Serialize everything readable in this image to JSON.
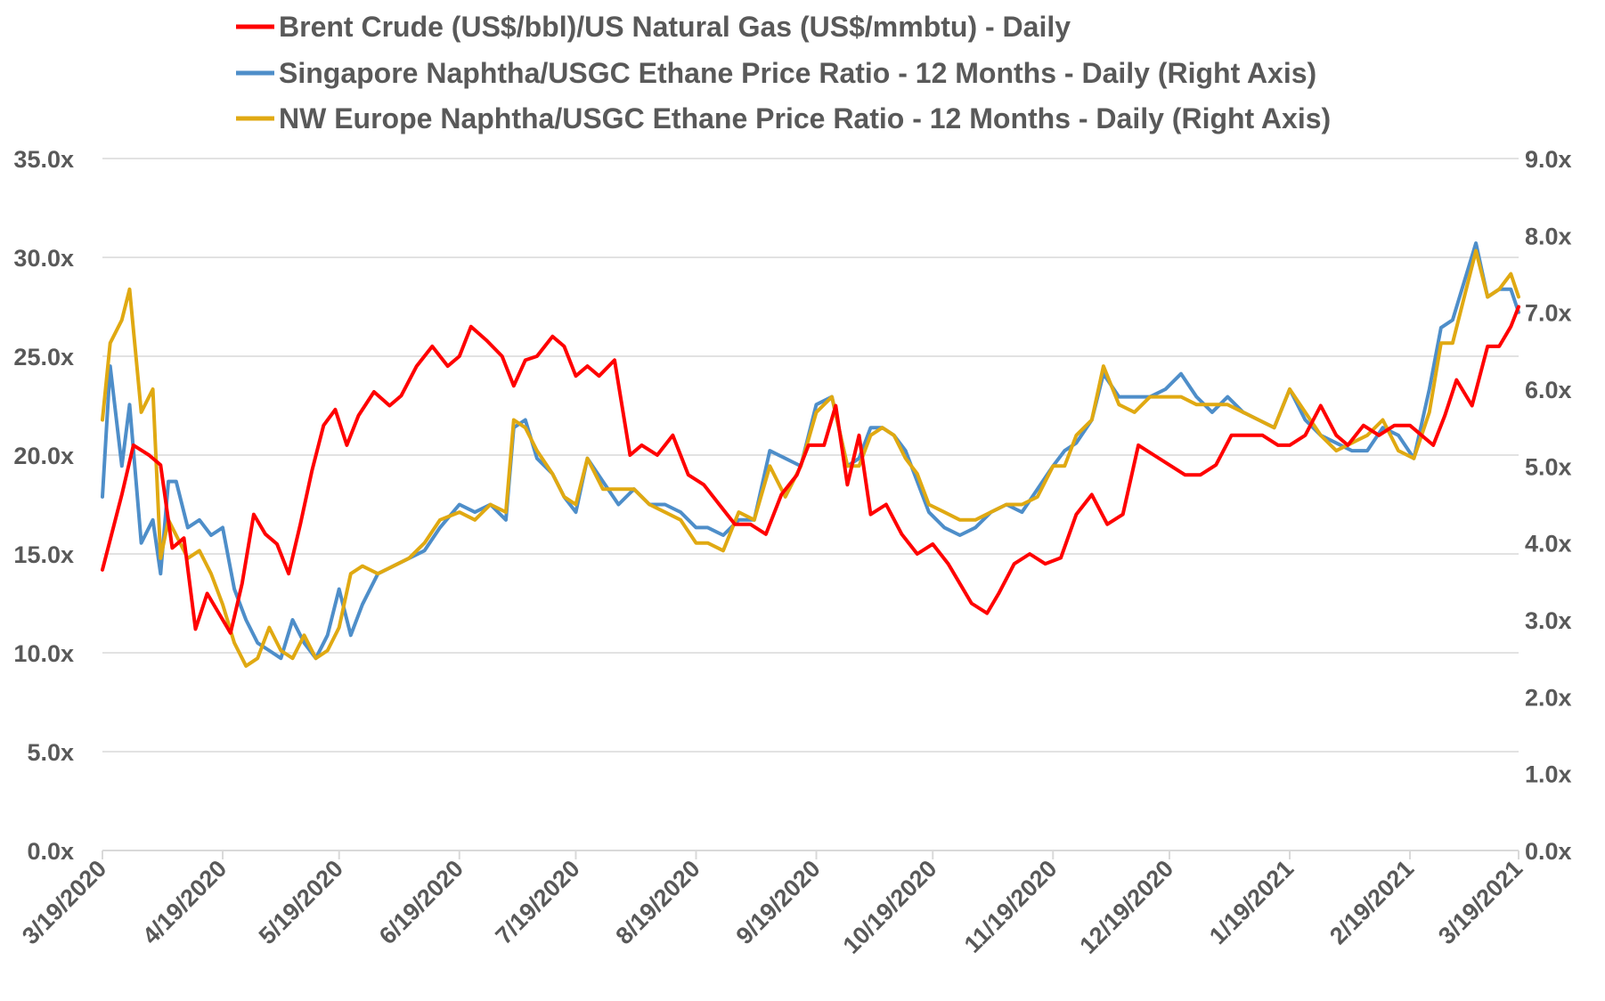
{
  "chart_data": {
    "type": "line",
    "legend": {
      "placement": "top"
    },
    "grid": true,
    "x_axis": {
      "type": "date",
      "range": [
        "2020-03-19",
        "2021-03-19"
      ],
      "tick_labels": [
        "3/19/2020",
        "4/19/2020",
        "5/19/2020",
        "6/19/2020",
        "7/19/2020",
        "8/19/2020",
        "9/19/2020",
        "10/19/2020",
        "11/19/2020",
        "12/19/2020",
        "1/19/2021",
        "2/19/2021",
        "3/19/2021"
      ],
      "tick_dates": [
        "2020-03-19",
        "2020-04-19",
        "2020-05-19",
        "2020-06-19",
        "2020-07-19",
        "2020-08-19",
        "2020-09-19",
        "2020-10-19",
        "2020-11-19",
        "2020-12-19",
        "2021-01-19",
        "2021-02-19",
        "2021-03-19"
      ]
    },
    "y_axis_left": {
      "range": [
        0,
        35
      ],
      "tick_values": [
        0,
        5,
        10,
        15,
        20,
        25,
        30,
        35
      ],
      "tick_labels": [
        "0.0x",
        "5.0x",
        "10.0x",
        "15.0x",
        "20.0x",
        "25.0x",
        "30.0x",
        "35.0x"
      ]
    },
    "y_axis_right": {
      "range": [
        0,
        9
      ],
      "tick_values": [
        0,
        1,
        2,
        3,
        4,
        5,
        6,
        7,
        8,
        9
      ],
      "tick_labels": [
        "0.0x",
        "1.0x",
        "2.0x",
        "3.0x",
        "4.0x",
        "5.0x",
        "6.0x",
        "7.0x",
        "8.0x",
        "9.0x"
      ]
    },
    "series": [
      {
        "name": "Brent Crude (US$/bbl)/US Natural Gas (US$/mmbtu) - Daily",
        "axis": "left",
        "color": "#ff0000",
        "x": [
          "2020-03-19",
          "2020-03-24",
          "2020-03-27",
          "2020-03-31",
          "2020-04-03",
          "2020-04-06",
          "2020-04-09",
          "2020-04-12",
          "2020-04-15",
          "2020-04-18",
          "2020-04-21",
          "2020-04-24",
          "2020-04-27",
          "2020-04-30",
          "2020-05-03",
          "2020-05-06",
          "2020-05-09",
          "2020-05-12",
          "2020-05-15",
          "2020-05-18",
          "2020-05-21",
          "2020-05-24",
          "2020-05-28",
          "2020-06-01",
          "2020-06-04",
          "2020-06-08",
          "2020-06-12",
          "2020-06-16",
          "2020-06-19",
          "2020-06-22",
          "2020-06-26",
          "2020-06-30",
          "2020-07-03",
          "2020-07-06",
          "2020-07-09",
          "2020-07-13",
          "2020-07-16",
          "2020-07-19",
          "2020-07-22",
          "2020-07-25",
          "2020-07-29",
          "2020-08-02",
          "2020-08-05",
          "2020-08-09",
          "2020-08-13",
          "2020-08-17",
          "2020-08-21",
          "2020-08-25",
          "2020-08-29",
          "2020-09-02",
          "2020-09-06",
          "2020-09-10",
          "2020-09-14",
          "2020-09-17",
          "2020-09-21",
          "2020-09-24",
          "2020-09-27",
          "2020-09-30",
          "2020-10-03",
          "2020-10-07",
          "2020-10-11",
          "2020-10-15",
          "2020-10-19",
          "2020-10-23",
          "2020-10-26",
          "2020-10-29",
          "2020-11-02",
          "2020-11-05",
          "2020-11-09",
          "2020-11-13",
          "2020-11-17",
          "2020-11-21",
          "2020-11-25",
          "2020-11-29",
          "2020-12-03",
          "2020-12-07",
          "2020-12-11",
          "2020-12-15",
          "2020-12-19",
          "2020-12-23",
          "2020-12-27",
          "2020-12-31",
          "2021-01-04",
          "2021-01-08",
          "2021-01-12",
          "2021-01-16",
          "2021-01-19",
          "2021-01-23",
          "2021-01-27",
          "2021-01-31",
          "2021-02-03",
          "2021-02-07",
          "2021-02-11",
          "2021-02-15",
          "2021-02-19",
          "2021-02-22",
          "2021-02-25",
          "2021-02-28",
          "2021-03-03",
          "2021-03-07",
          "2021-03-11",
          "2021-03-14",
          "2021-03-17",
          "2021-03-19"
        ],
        "values": [
          14.2,
          18.0,
          20.5,
          20.0,
          19.5,
          15.3,
          15.8,
          11.2,
          13.0,
          12.0,
          11.0,
          13.5,
          17.0,
          16.0,
          15.5,
          14.0,
          16.5,
          19.2,
          21.5,
          22.3,
          20.5,
          22.0,
          23.2,
          22.5,
          23.0,
          24.5,
          25.5,
          24.5,
          25.0,
          26.5,
          25.8,
          25.0,
          23.5,
          24.8,
          25.0,
          26.0,
          25.5,
          24.0,
          24.5,
          24.0,
          24.8,
          20.0,
          20.5,
          20.0,
          21.0,
          19.0,
          18.5,
          17.5,
          16.5,
          16.5,
          16.0,
          18.0,
          19.0,
          20.5,
          20.5,
          22.5,
          18.5,
          21.0,
          17.0,
          17.5,
          16.0,
          15.0,
          15.5,
          14.5,
          13.5,
          12.5,
          12.0,
          13.0,
          14.5,
          15.0,
          14.5,
          14.8,
          17.0,
          18.0,
          16.5,
          17.0,
          20.5,
          20.0,
          19.5,
          19.0,
          19.0,
          19.5,
          21.0,
          21.0,
          21.0,
          20.5,
          20.5,
          21.0,
          22.5,
          21.0,
          20.5,
          21.5,
          21.0,
          21.5,
          21.5,
          21.0,
          20.5,
          22.0,
          23.8,
          22.5,
          25.5,
          25.5,
          26.5,
          27.5
        ],
        "value_precision_note": "approximate"
      },
      {
        "name": "Singapore Naphtha/USGC Ethane Price Ratio - 12 Months - Daily (Right Axis)",
        "axis": "right",
        "color": "#4e8ec9",
        "x": [
          "2020-03-19",
          "2020-03-21",
          "2020-03-24",
          "2020-03-26",
          "2020-03-29",
          "2020-04-01",
          "2020-04-03",
          "2020-04-05",
          "2020-04-07",
          "2020-04-10",
          "2020-04-13",
          "2020-04-16",
          "2020-04-19",
          "2020-04-22",
          "2020-04-25",
          "2020-04-28",
          "2020-05-01",
          "2020-05-04",
          "2020-05-07",
          "2020-05-10",
          "2020-05-13",
          "2020-05-16",
          "2020-05-19",
          "2020-05-22",
          "2020-05-25",
          "2020-05-29",
          "2020-06-02",
          "2020-06-06",
          "2020-06-10",
          "2020-06-14",
          "2020-06-19",
          "2020-06-23",
          "2020-06-27",
          "2020-07-01",
          "2020-07-03",
          "2020-07-06",
          "2020-07-09",
          "2020-07-13",
          "2020-07-16",
          "2020-07-19",
          "2020-07-22",
          "2020-07-26",
          "2020-07-30",
          "2020-08-03",
          "2020-08-07",
          "2020-08-11",
          "2020-08-15",
          "2020-08-19",
          "2020-08-22",
          "2020-08-26",
          "2020-08-30",
          "2020-09-03",
          "2020-09-07",
          "2020-09-11",
          "2020-09-15",
          "2020-09-19",
          "2020-09-23",
          "2020-09-27",
          "2020-09-30",
          "2020-10-03",
          "2020-10-06",
          "2020-10-09",
          "2020-10-12",
          "2020-10-15",
          "2020-10-18",
          "2020-10-22",
          "2020-10-26",
          "2020-10-30",
          "2020-11-03",
          "2020-11-07",
          "2020-11-11",
          "2020-11-15",
          "2020-11-19",
          "2020-11-22",
          "2020-11-25",
          "2020-11-29",
          "2020-12-02",
          "2020-12-06",
          "2020-12-10",
          "2020-12-14",
          "2020-12-18",
          "2020-12-22",
          "2020-12-26",
          "2020-12-30",
          "2021-01-03",
          "2021-01-07",
          "2021-01-11",
          "2021-01-15",
          "2021-01-19",
          "2021-01-23",
          "2021-01-27",
          "2021-01-31",
          "2021-02-04",
          "2021-02-08",
          "2021-02-12",
          "2021-02-16",
          "2021-02-20",
          "2021-02-24",
          "2021-02-27",
          "2021-03-02",
          "2021-03-05",
          "2021-03-08",
          "2021-03-11",
          "2021-03-14",
          "2021-03-17",
          "2021-03-19"
        ],
        "values": [
          4.6,
          6.3,
          5.0,
          5.8,
          4.0,
          4.3,
          3.6,
          4.8,
          4.8,
          4.2,
          4.3,
          4.1,
          4.2,
          3.4,
          3.0,
          2.7,
          2.6,
          2.5,
          3.0,
          2.7,
          2.5,
          2.8,
          3.4,
          2.8,
          3.2,
          3.6,
          3.7,
          3.8,
          3.9,
          4.2,
          4.5,
          4.4,
          4.5,
          4.3,
          5.5,
          5.6,
          5.1,
          4.9,
          4.6,
          4.4,
          5.1,
          4.8,
          4.5,
          4.7,
          4.5,
          4.5,
          4.4,
          4.2,
          4.2,
          4.1,
          4.3,
          4.3,
          5.2,
          5.1,
          5.0,
          5.8,
          5.9,
          5.0,
          5.1,
          5.5,
          5.5,
          5.4,
          5.2,
          4.8,
          4.4,
          4.2,
          4.1,
          4.2,
          4.4,
          4.5,
          4.4,
          4.7,
          5.0,
          5.2,
          5.3,
          5.6,
          6.2,
          5.9,
          5.9,
          5.9,
          6.0,
          6.2,
          5.9,
          5.7,
          5.9,
          5.7,
          5.6,
          5.5,
          6.0,
          5.6,
          5.4,
          5.3,
          5.2,
          5.2,
          5.5,
          5.4,
          5.1,
          6.0,
          6.8,
          6.9,
          7.4,
          7.9,
          7.2,
          7.3,
          7.3,
          7.0
        ]
      },
      {
        "name": "NW Europe Naphtha/USGC Ethane Price Ratio - 12 Months - Daily (Right Axis)",
        "axis": "right",
        "color": "#e0a912",
        "x": [
          "2020-03-19",
          "2020-03-21",
          "2020-03-24",
          "2020-03-26",
          "2020-03-29",
          "2020-04-01",
          "2020-04-03",
          "2020-04-05",
          "2020-04-07",
          "2020-04-10",
          "2020-04-13",
          "2020-04-16",
          "2020-04-19",
          "2020-04-22",
          "2020-04-25",
          "2020-04-28",
          "2020-05-01",
          "2020-05-04",
          "2020-05-07",
          "2020-05-10",
          "2020-05-13",
          "2020-05-16",
          "2020-05-19",
          "2020-05-22",
          "2020-05-25",
          "2020-05-29",
          "2020-06-02",
          "2020-06-06",
          "2020-06-10",
          "2020-06-14",
          "2020-06-19",
          "2020-06-23",
          "2020-06-27",
          "2020-07-01",
          "2020-07-03",
          "2020-07-06",
          "2020-07-09",
          "2020-07-13",
          "2020-07-16",
          "2020-07-19",
          "2020-07-22",
          "2020-07-26",
          "2020-07-30",
          "2020-08-03",
          "2020-08-07",
          "2020-08-11",
          "2020-08-15",
          "2020-08-19",
          "2020-08-22",
          "2020-08-26",
          "2020-08-30",
          "2020-09-03",
          "2020-09-07",
          "2020-09-11",
          "2020-09-15",
          "2020-09-19",
          "2020-09-23",
          "2020-09-27",
          "2020-09-30",
          "2020-10-03",
          "2020-10-06",
          "2020-10-09",
          "2020-10-12",
          "2020-10-15",
          "2020-10-18",
          "2020-10-22",
          "2020-10-26",
          "2020-10-30",
          "2020-11-03",
          "2020-11-07",
          "2020-11-11",
          "2020-11-15",
          "2020-11-19",
          "2020-11-22",
          "2020-11-25",
          "2020-11-29",
          "2020-12-02",
          "2020-12-06",
          "2020-12-10",
          "2020-12-14",
          "2020-12-18",
          "2020-12-22",
          "2020-12-26",
          "2020-12-30",
          "2021-01-03",
          "2021-01-07",
          "2021-01-11",
          "2021-01-15",
          "2021-01-19",
          "2021-01-23",
          "2021-01-27",
          "2021-01-31",
          "2021-02-04",
          "2021-02-08",
          "2021-02-12",
          "2021-02-16",
          "2021-02-20",
          "2021-02-24",
          "2021-02-27",
          "2021-03-02",
          "2021-03-05",
          "2021-03-08",
          "2021-03-11",
          "2021-03-14",
          "2021-03-17",
          "2021-03-19"
        ],
        "values": [
          5.6,
          6.6,
          6.9,
          7.3,
          5.7,
          6.0,
          3.8,
          4.3,
          4.1,
          3.8,
          3.9,
          3.6,
          3.2,
          2.7,
          2.4,
          2.5,
          2.9,
          2.6,
          2.5,
          2.8,
          2.5,
          2.6,
          2.9,
          3.6,
          3.7,
          3.6,
          3.7,
          3.8,
          4.0,
          4.3,
          4.4,
          4.3,
          4.5,
          4.4,
          5.6,
          5.5,
          5.2,
          4.9,
          4.6,
          4.5,
          5.1,
          4.7,
          4.7,
          4.7,
          4.5,
          4.4,
          4.3,
          4.0,
          4.0,
          3.9,
          4.4,
          4.3,
          5.0,
          4.6,
          5.0,
          5.7,
          5.9,
          5.0,
          5.0,
          5.4,
          5.5,
          5.4,
          5.1,
          4.9,
          4.5,
          4.4,
          4.3,
          4.3,
          4.4,
          4.5,
          4.5,
          4.6,
          5.0,
          5.0,
          5.4,
          5.6,
          6.3,
          5.8,
          5.7,
          5.9,
          5.9,
          5.9,
          5.8,
          5.8,
          5.8,
          5.7,
          5.6,
          5.5,
          6.0,
          5.7,
          5.4,
          5.2,
          5.3,
          5.4,
          5.6,
          5.2,
          5.1,
          5.7,
          6.6,
          6.6,
          7.2,
          7.8,
          7.2,
          7.3,
          7.5,
          7.2
        ]
      }
    ]
  }
}
